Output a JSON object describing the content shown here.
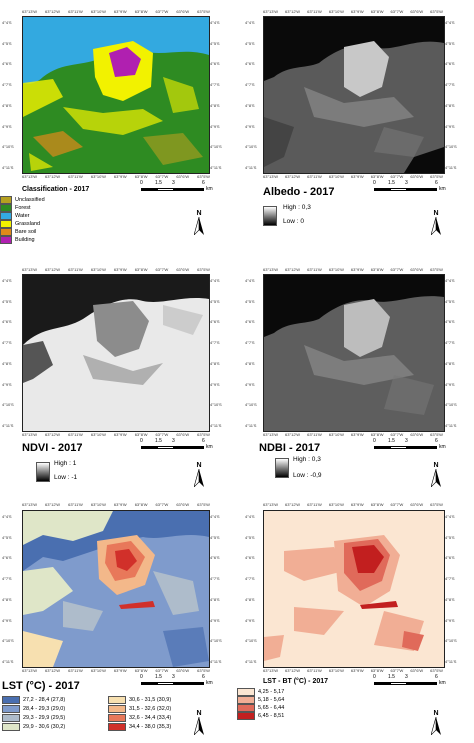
{
  "ticks": {
    "top": [
      "63°13'W",
      "63°12'W",
      "63°11'W",
      "63°10'W",
      "63°9'W",
      "63°8'W",
      "63°7'W",
      "63°6'W",
      "63°5'W"
    ],
    "bottom": [
      "63°13'W",
      "63°12'W",
      "63°11'W",
      "63°10'W",
      "63°9'W",
      "63°8'W",
      "63°7'W",
      "63°6'W",
      "63°5'W"
    ],
    "lat": [
      "4°4'S",
      "4°5'S",
      "4°6'S",
      "4°7'S",
      "4°8'S",
      "4°9'S",
      "4°10'S",
      "4°11'S"
    ]
  },
  "scalebar": {
    "labels": [
      "0",
      "1.5",
      "3",
      "6"
    ],
    "unit": "km"
  },
  "north_label": "N",
  "classification": {
    "title": "Classification - 2017",
    "legend": [
      {
        "label": "Unclassified",
        "color": "#b5a020"
      },
      {
        "label": "Forest",
        "color": "#2e8b22"
      },
      {
        "label": "Water",
        "color": "#33a9e0"
      },
      {
        "label": "Grassland",
        "color": "#f2f200"
      },
      {
        "label": "Bare soil",
        "color": "#e08a1a"
      },
      {
        "label": "Building",
        "color": "#b020b0"
      }
    ]
  },
  "albedo": {
    "title": "Albedo - 2017",
    "high": "High : 0,3",
    "low": "Low : 0"
  },
  "ndvi": {
    "title": "NDVI - 2017",
    "high": "High : 1",
    "low": "Low : -1"
  },
  "ndbi": {
    "title": "NDBI - 2017",
    "high": "High : 0,3",
    "low": "Low : -0,9"
  },
  "lst": {
    "title": "LST (°C) - 2017",
    "legend": [
      {
        "label": "27,2 - 28,4 (27,8)",
        "color": "#4a6fb0"
      },
      {
        "label": "28,4 - 29,3 (29,0)",
        "color": "#7f9bcc"
      },
      {
        "label": "29,3 - 29,9 (29,5)",
        "color": "#aebccb"
      },
      {
        "label": "29,9 - 30,6 (30,2)",
        "color": "#dfe6c8"
      },
      {
        "label": "30,6 - 31,5 (30,9)",
        "color": "#f7e0b0"
      },
      {
        "label": "31,5 - 32,6 (32,0)",
        "color": "#f3b88a"
      },
      {
        "label": "32,6 - 34,4 (33,4)",
        "color": "#e8785a"
      },
      {
        "label": "34,4 - 38,0 (35,3)",
        "color": "#d1302a"
      }
    ]
  },
  "lst_bt": {
    "title": "LST - BT (°C) - 2017",
    "legend": [
      {
        "label": "4,25 - 5,17",
        "color": "#fbe6d2"
      },
      {
        "label": "5,18 - 5,64",
        "color": "#f1ae95"
      },
      {
        "label": "5,65 - 6,44",
        "color": "#e06a5a"
      },
      {
        "label": "6,45 - 8,51",
        "color": "#c21f1f"
      }
    ]
  }
}
